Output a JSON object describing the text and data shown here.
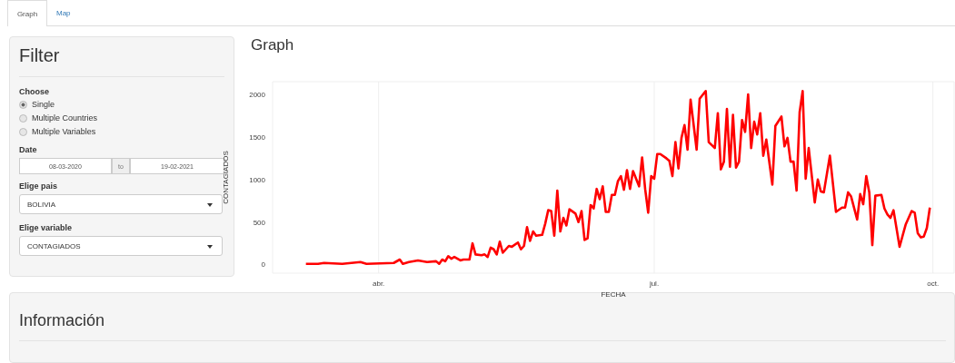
{
  "chart_data": {
    "type": "line",
    "title": "Graph",
    "xlabel": "FECHA",
    "ylabel": "CONTAGIADOS",
    "annotations": [
      "Graph",
      "Map",
      "Filter",
      "Choose",
      "Single",
      "Multiple Countries",
      "Multiple Variables",
      "Date",
      "08-03-2020",
      "to",
      "19-02-2021",
      "Elige pais",
      "BOLIVIA",
      "Elige variable",
      "CONTAGIADOS",
      "Información"
    ],
    "xlim": [
      "2020-02-26",
      "2020-10-08"
    ],
    "xticks": [
      {
        "value": "2020-04-01",
        "label": "abr."
      },
      {
        "value": "2020-07-01",
        "label": "jul."
      },
      {
        "value": "2020-10-01",
        "label": "oct."
      }
    ],
    "ylim": [
      -100,
      2150
    ],
    "yticks": [
      0,
      500,
      1000,
      1500,
      2000
    ],
    "grid": true,
    "legend": false,
    "marker": "none",
    "line_style": "solid",
    "x": [
      "2020-03-08",
      "2020-03-12",
      "2020-03-14",
      "2020-03-20",
      "2020-03-26",
      "2020-03-28",
      "2020-04-06",
      "2020-04-08",
      "2020-04-09",
      "2020-04-11",
      "2020-04-14",
      "2020-04-17",
      "2020-04-20",
      "2020-04-21",
      "2020-04-22",
      "2020-04-23",
      "2020-04-24",
      "2020-04-25",
      "2020-04-26",
      "2020-04-28",
      "2020-04-29",
      "2020-05-01",
      "2020-05-02",
      "2020-05-03",
      "2020-05-05",
      "2020-05-06",
      "2020-05-07",
      "2020-05-08",
      "2020-05-09",
      "2020-05-10",
      "2020-05-11",
      "2020-05-12",
      "2020-05-14",
      "2020-05-15",
      "2020-05-17",
      "2020-05-18",
      "2020-05-19",
      "2020-05-20",
      "2020-05-21",
      "2020-05-22",
      "2020-05-23",
      "2020-05-25",
      "2020-05-26",
      "2020-05-27",
      "2020-05-28",
      "2020-05-29",
      "2020-05-30",
      "2020-05-31",
      "2020-06-01",
      "2020-06-02",
      "2020-06-03",
      "2020-06-05",
      "2020-06-06",
      "2020-06-07",
      "2020-06-08",
      "2020-06-09",
      "2020-06-10",
      "2020-06-11",
      "2020-06-12",
      "2020-06-13",
      "2020-06-14",
      "2020-06-15",
      "2020-06-16",
      "2020-06-17",
      "2020-06-18",
      "2020-06-19",
      "2020-06-20",
      "2020-06-21",
      "2020-06-22",
      "2020-06-23",
      "2020-06-24",
      "2020-06-26",
      "2020-06-27",
      "2020-06-28",
      "2020-06-29",
      "2020-06-30",
      "2020-07-01",
      "2020-07-02",
      "2020-07-03",
      "2020-07-05",
      "2020-07-06",
      "2020-07-07",
      "2020-07-08",
      "2020-07-09",
      "2020-07-10",
      "2020-07-11",
      "2020-07-12",
      "2020-07-13",
      "2020-07-15",
      "2020-07-16",
      "2020-07-18",
      "2020-07-19",
      "2020-07-21",
      "2020-07-22",
      "2020-07-23",
      "2020-07-24",
      "2020-07-25",
      "2020-07-26",
      "2020-07-27",
      "2020-07-28",
      "2020-07-29",
      "2020-07-30",
      "2020-07-31",
      "2020-08-01",
      "2020-08-02",
      "2020-08-03",
      "2020-08-04",
      "2020-08-05",
      "2020-08-06",
      "2020-08-07",
      "2020-08-09",
      "2020-08-10",
      "2020-08-12",
      "2020-08-13",
      "2020-08-14",
      "2020-08-15",
      "2020-08-16",
      "2020-08-17",
      "2020-08-18",
      "2020-08-19",
      "2020-08-20",
      "2020-08-21",
      "2020-08-23",
      "2020-08-24",
      "2020-08-25",
      "2020-08-26",
      "2020-08-28",
      "2020-08-30",
      "2020-09-01",
      "2020-09-02",
      "2020-09-03",
      "2020-09-04",
      "2020-09-06",
      "2020-09-07",
      "2020-09-08",
      "2020-09-09",
      "2020-09-10",
      "2020-09-11",
      "2020-09-12",
      "2020-09-14",
      "2020-09-15",
      "2020-09-16",
      "2020-09-17",
      "2020-09-18",
      "2020-09-20",
      "2020-09-22",
      "2020-09-24",
      "2020-09-25",
      "2020-09-26",
      "2020-09-27",
      "2020-09-28",
      "2020-09-29",
      "2020-09-30"
    ],
    "series": [
      {
        "color": "#ff0000",
        "values": [
          10,
          10,
          20,
          10,
          30,
          10,
          20,
          60,
          10,
          30,
          50,
          30,
          40,
          10,
          60,
          40,
          100,
          70,
          90,
          50,
          60,
          60,
          250,
          120,
          110,
          120,
          90,
          200,
          180,
          120,
          270,
          140,
          220,
          210,
          260,
          180,
          220,
          440,
          280,
          390,
          340,
          350,
          480,
          640,
          630,
          340,
          870,
          390,
          550,
          460,
          650,
          600,
          500,
          630,
          290,
          310,
          700,
          660,
          890,
          770,
          920,
          620,
          620,
          820,
          820,
          980,
          1040,
          880,
          1110,
          890,
          1100,
          920,
          1260,
          890,
          610,
          1040,
          1010,
          1300,
          1300,
          1250,
          1220,
          1040,
          1440,
          1130,
          1490,
          1640,
          1350,
          1940,
          1350,
          1950,
          2040,
          1440,
          1370,
          1780,
          1120,
          1210,
          1830,
          1150,
          1760,
          1140,
          1210,
          1700,
          1560,
          2000,
          1370,
          1680,
          1530,
          1780,
          1280,
          1470,
          940,
          1630,
          1740,
          1390,
          1490,
          1210,
          1210,
          870,
          1790,
          2040,
          1010,
          1370,
          730,
          1000,
          860,
          850,
          1280,
          620,
          670,
          670,
          850,
          800,
          530,
          830,
          710,
          1040,
          850,
          230,
          810,
          820,
          660,
          590,
          550,
          640,
          210,
          470,
          630,
          610,
          370,
          320,
          330,
          430,
          670
        ]
      }
    ]
  }
}
